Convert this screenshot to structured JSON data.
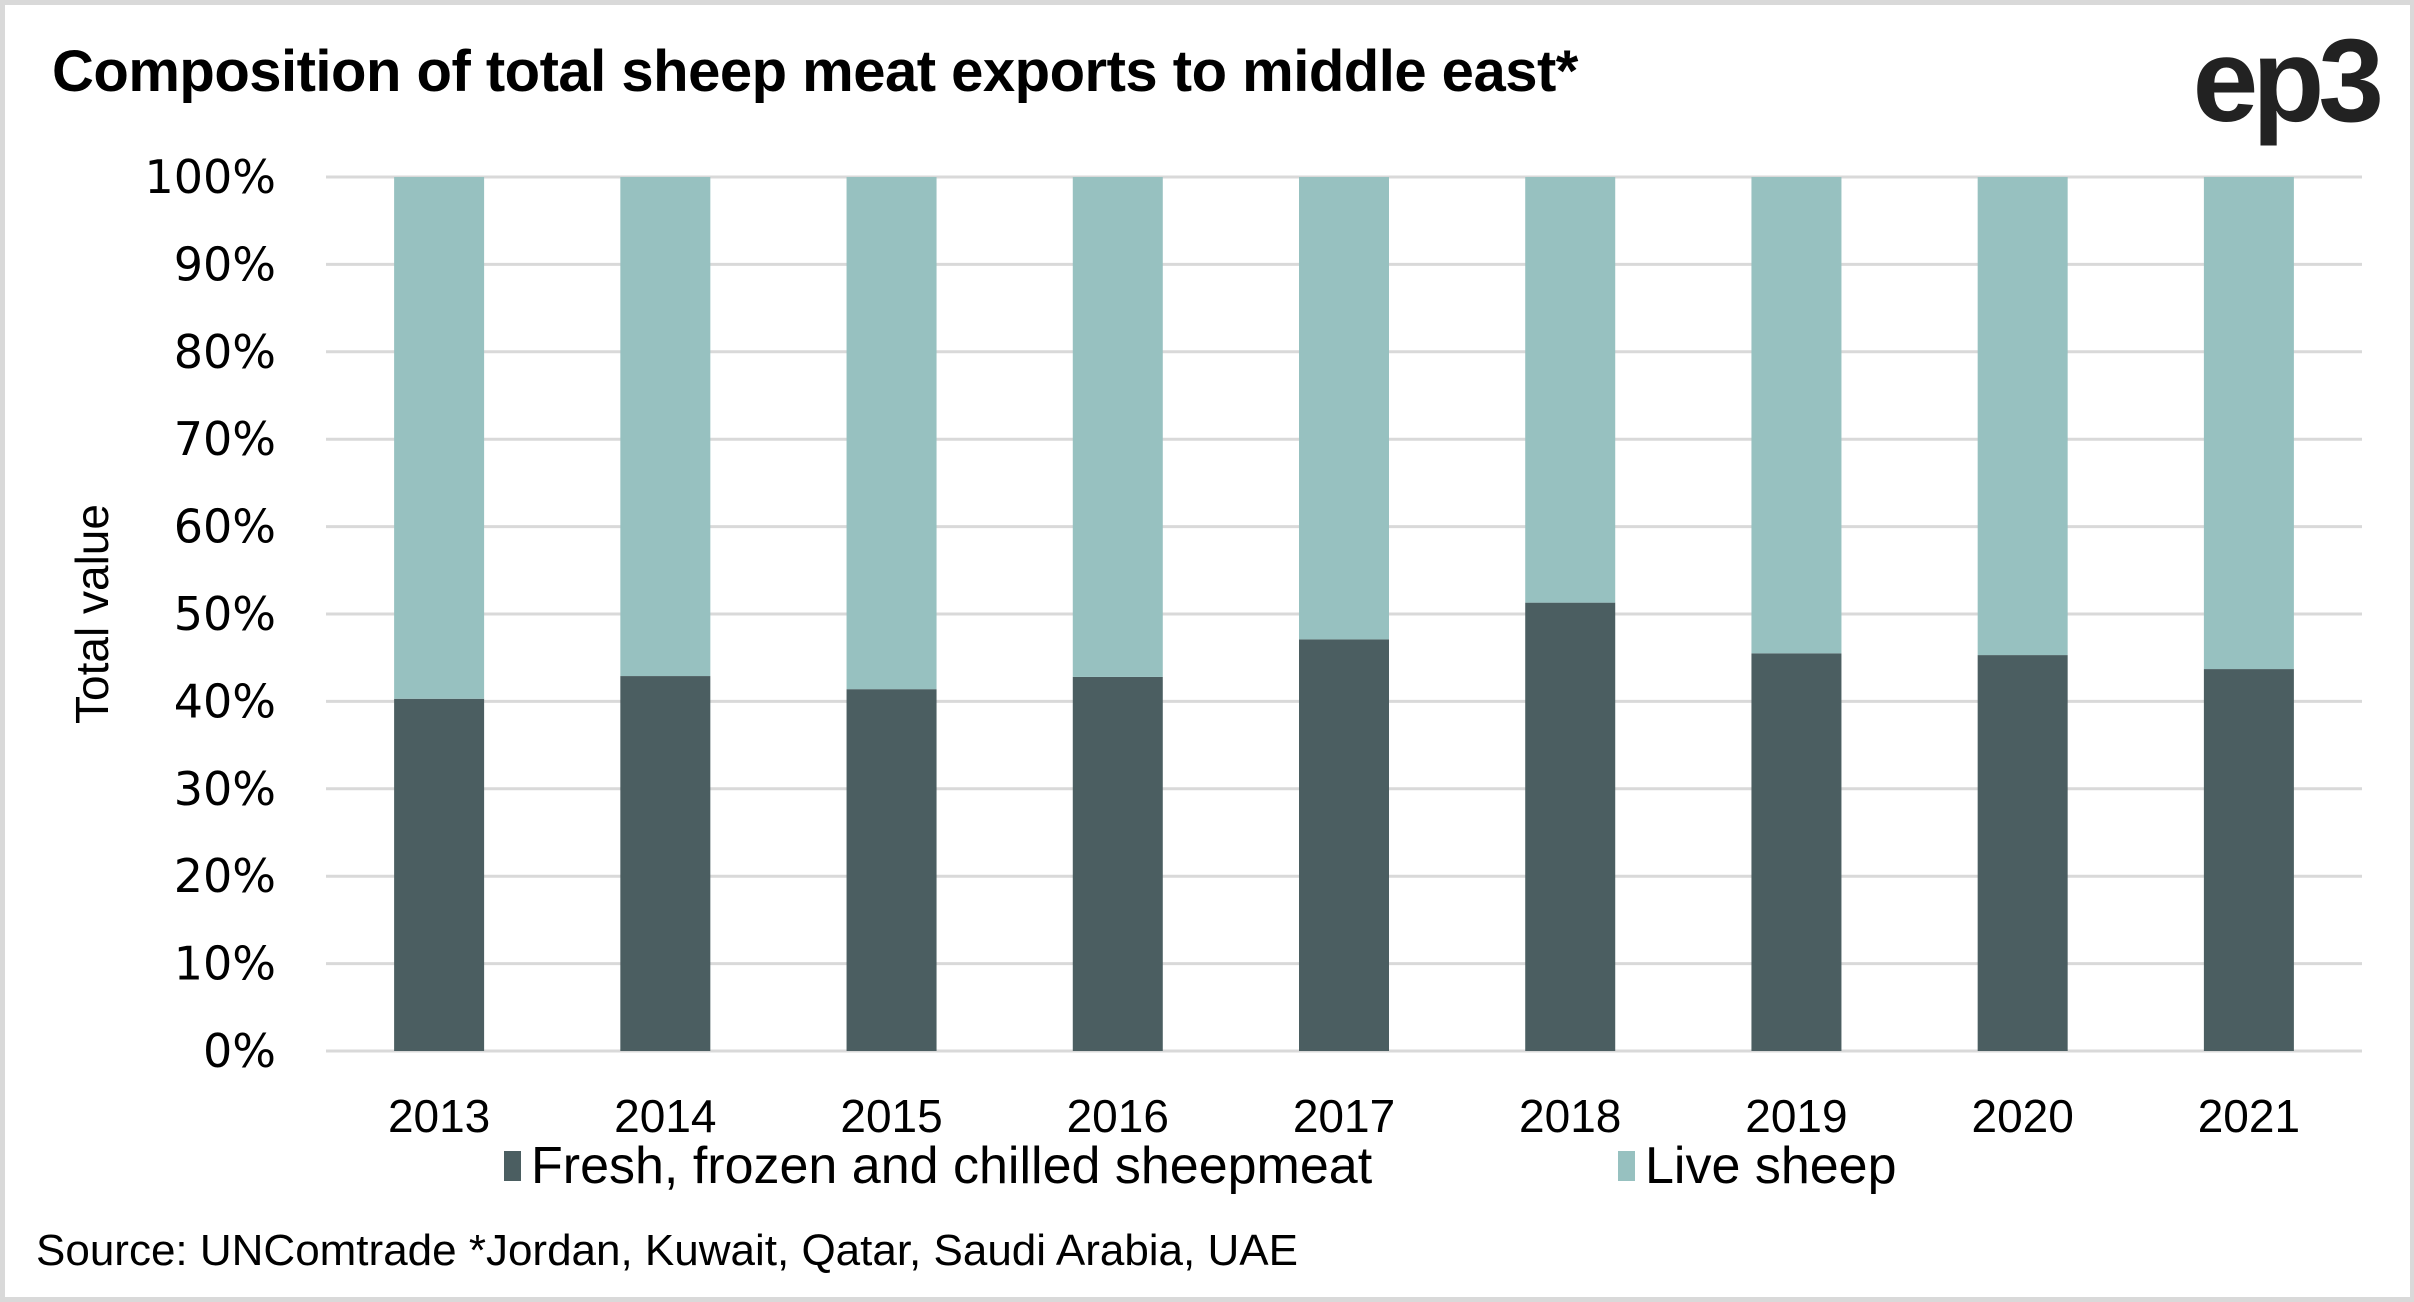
{
  "header": {
    "title": "Composition of total sheep meat exports to middle east*",
    "logo": "ep3"
  },
  "footer": {
    "source": "Source: UNComtrade *Jordan, Kuwait, Qatar, Saudi Arabia, UAE"
  },
  "chart_data": {
    "type": "bar",
    "stacked": true,
    "percent_stacked": true,
    "title": "Composition of total sheep meat exports to middle east*",
    "xlabel": "",
    "ylabel": "Total value",
    "ylim": [
      0,
      100
    ],
    "yticks": [
      "0%",
      "10%",
      "20%",
      "30%",
      "40%",
      "50%",
      "60%",
      "70%",
      "80%",
      "90%",
      "100%"
    ],
    "grid": true,
    "legend_position": "bottom",
    "categories": [
      "2013",
      "2014",
      "2015",
      "2016",
      "2017",
      "2018",
      "2019",
      "2020",
      "2021"
    ],
    "series": [
      {
        "name": "Fresh, frozen and chilled sheepmeat",
        "color": "#4b5e61",
        "values": [
          40.3,
          42.9,
          41.4,
          42.8,
          47.1,
          51.3,
          45.5,
          45.3,
          43.7
        ]
      },
      {
        "name": "Live sheep",
        "color": "#97c1c0",
        "values": [
          59.7,
          57.1,
          58.6,
          57.2,
          52.9,
          48.7,
          54.5,
          54.7,
          56.3
        ]
      }
    ],
    "gridline_color": "#d9d9d9"
  }
}
